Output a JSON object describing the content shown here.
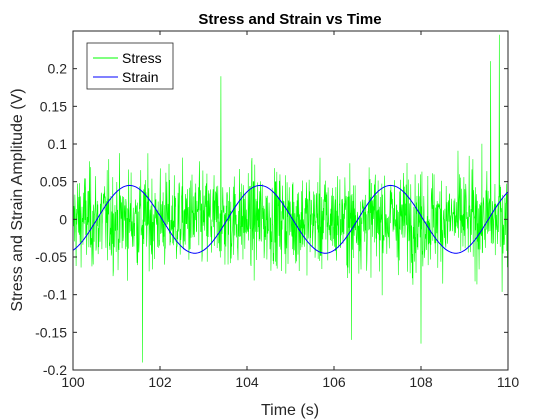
{
  "chart_data": {
    "type": "line",
    "title": "Stress and Strain vs Time",
    "xlabel": "Time (s)",
    "ylabel": "Stress and Strain Amplitude (V)",
    "xlim": [
      100,
      110
    ],
    "ylim": [
      -0.2,
      0.25
    ],
    "x_ticks": [
      100,
      102,
      104,
      106,
      108,
      110
    ],
    "x_tick_labels": [
      "100",
      "102",
      "104",
      "106",
      "108",
      "110"
    ],
    "y_ticks": [
      -0.2,
      -0.15,
      -0.1,
      -0.05,
      0,
      0.05,
      0.1,
      0.15,
      0.2
    ],
    "y_tick_labels": [
      "-0.2",
      "-0.15",
      "-0.1",
      "-0.05",
      "0",
      "0.05",
      "0.1",
      "0.15",
      "0.2"
    ],
    "grid": false,
    "legend_position": "top-left",
    "series": [
      {
        "name": "Stress",
        "color": "#00ff00",
        "description_values": {
          "kind": "noisy signal around zero",
          "typical_range": [
            -0.1,
            0.12
          ],
          "extremes": [
            {
              "x": 101.6,
              "y": -0.19
            },
            {
              "x": 103.4,
              "y": 0.19
            },
            {
              "x": 109.8,
              "y": 0.245
            },
            {
              "x": 109.6,
              "y": 0.21
            },
            {
              "x": 108.0,
              "y": -0.165
            },
            {
              "x": 106.4,
              "y": -0.16
            }
          ]
        }
      },
      {
        "name": "Strain",
        "color": "#0000ff",
        "amplitude": 0.045,
        "period": 3.0,
        "peaks_x": [
          101.3,
          104.3,
          107.3
        ],
        "troughs_x": [
          102.8,
          105.8,
          108.8
        ],
        "start": {
          "x": 100,
          "y": -0.04
        },
        "end": {
          "x": 110,
          "y": 0.038
        }
      }
    ]
  }
}
